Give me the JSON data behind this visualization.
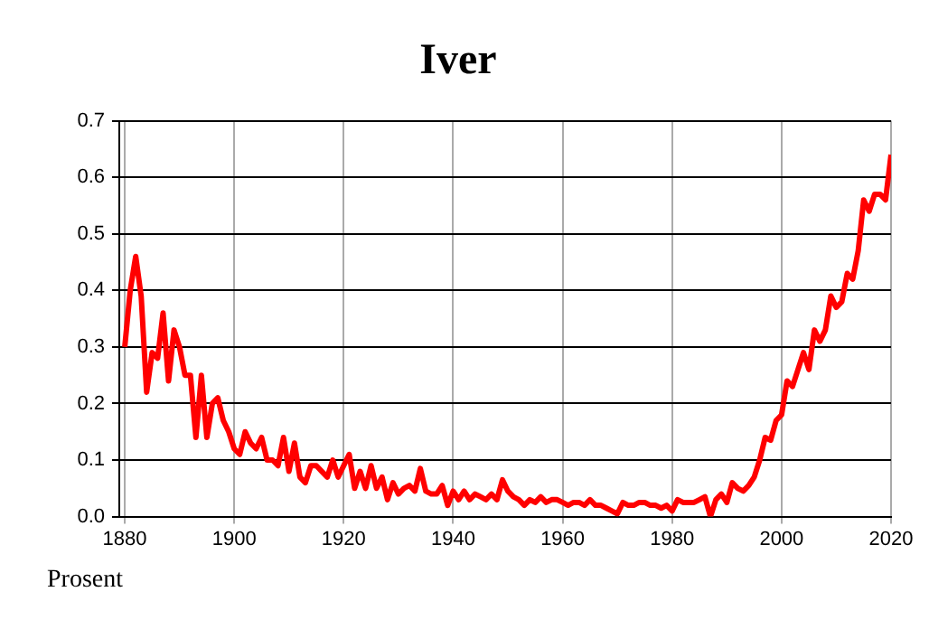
{
  "chart_data": {
    "type": "line",
    "title": "Iver",
    "ylabel": "Prosent",
    "x": [
      1880,
      1881,
      1882,
      1883,
      1884,
      1885,
      1886,
      1887,
      1888,
      1889,
      1890,
      1891,
      1892,
      1893,
      1894,
      1895,
      1896,
      1897,
      1898,
      1899,
      1900,
      1901,
      1902,
      1903,
      1904,
      1905,
      1906,
      1907,
      1908,
      1909,
      1910,
      1911,
      1912,
      1913,
      1914,
      1915,
      1916,
      1917,
      1918,
      1919,
      1920,
      1921,
      1922,
      1923,
      1924,
      1925,
      1926,
      1927,
      1928,
      1929,
      1930,
      1931,
      1932,
      1933,
      1934,
      1935,
      1936,
      1937,
      1938,
      1939,
      1940,
      1941,
      1942,
      1943,
      1944,
      1945,
      1946,
      1947,
      1948,
      1949,
      1950,
      1951,
      1952,
      1953,
      1954,
      1955,
      1956,
      1957,
      1958,
      1959,
      1960,
      1961,
      1962,
      1963,
      1964,
      1965,
      1966,
      1967,
      1968,
      1969,
      1970,
      1971,
      1972,
      1973,
      1974,
      1975,
      1976,
      1977,
      1978,
      1979,
      1980,
      1981,
      1982,
      1983,
      1984,
      1985,
      1986,
      1987,
      1988,
      1989,
      1990,
      1991,
      1992,
      1993,
      1994,
      1995,
      1996,
      1997,
      1998,
      1999,
      2000,
      2001,
      2002,
      2003,
      2004,
      2005,
      2006,
      2007,
      2008,
      2009,
      2010,
      2011,
      2012,
      2013,
      2014,
      2015,
      2016,
      2017,
      2018,
      2019,
      2020
    ],
    "series": [
      {
        "color": "#ff0000",
        "values": [
          0.3,
          0.4,
          0.46,
          0.39,
          0.22,
          0.29,
          0.28,
          0.36,
          0.24,
          0.33,
          0.3,
          0.25,
          0.25,
          0.14,
          0.25,
          0.14,
          0.2,
          0.21,
          0.17,
          0.15,
          0.12,
          0.11,
          0.15,
          0.13,
          0.12,
          0.14,
          0.1,
          0.1,
          0.09,
          0.14,
          0.08,
          0.13,
          0.07,
          0.06,
          0.09,
          0.09,
          0.08,
          0.07,
          0.1,
          0.07,
          0.09,
          0.11,
          0.05,
          0.08,
          0.05,
          0.09,
          0.05,
          0.07,
          0.03,
          0.06,
          0.04,
          0.05,
          0.055,
          0.045,
          0.085,
          0.045,
          0.04,
          0.04,
          0.055,
          0.02,
          0.045,
          0.03,
          0.045,
          0.03,
          0.04,
          0.035,
          0.03,
          0.04,
          0.03,
          0.065,
          0.045,
          0.035,
          0.03,
          0.02,
          0.03,
          0.025,
          0.035,
          0.025,
          0.03,
          0.03,
          0.025,
          0.02,
          0.025,
          0.025,
          0.02,
          0.03,
          0.02,
          0.02,
          0.015,
          0.01,
          0.005,
          0.025,
          0.02,
          0.02,
          0.025,
          0.025,
          0.02,
          0.02,
          0.015,
          0.02,
          0.01,
          0.03,
          0.025,
          0.025,
          0.025,
          0.03,
          0.035,
          0.0,
          0.03,
          0.04,
          0.025,
          0.06,
          0.05,
          0.045,
          0.055,
          0.07,
          0.1,
          0.14,
          0.135,
          0.17,
          0.18,
          0.24,
          0.23,
          0.26,
          0.29,
          0.26,
          0.33,
          0.31,
          0.33,
          0.39,
          0.37,
          0.38,
          0.43,
          0.42,
          0.47,
          0.56,
          0.54,
          0.57,
          0.57,
          0.56,
          0.64
        ]
      }
    ],
    "xlim": [
      1879,
      2020
    ],
    "xticks": [
      1880,
      1900,
      1920,
      1940,
      1960,
      1980,
      2000,
      2020
    ],
    "ylim": [
      0,
      0.7
    ],
    "yticks": [
      {
        "value": 0,
        "label": "0.0"
      },
      0.1,
      0.2,
      0.3,
      0.4,
      0.5,
      0.6,
      0.7
    ],
    "grid": true,
    "legend": false,
    "marker": "none",
    "line_style": "solid"
  }
}
